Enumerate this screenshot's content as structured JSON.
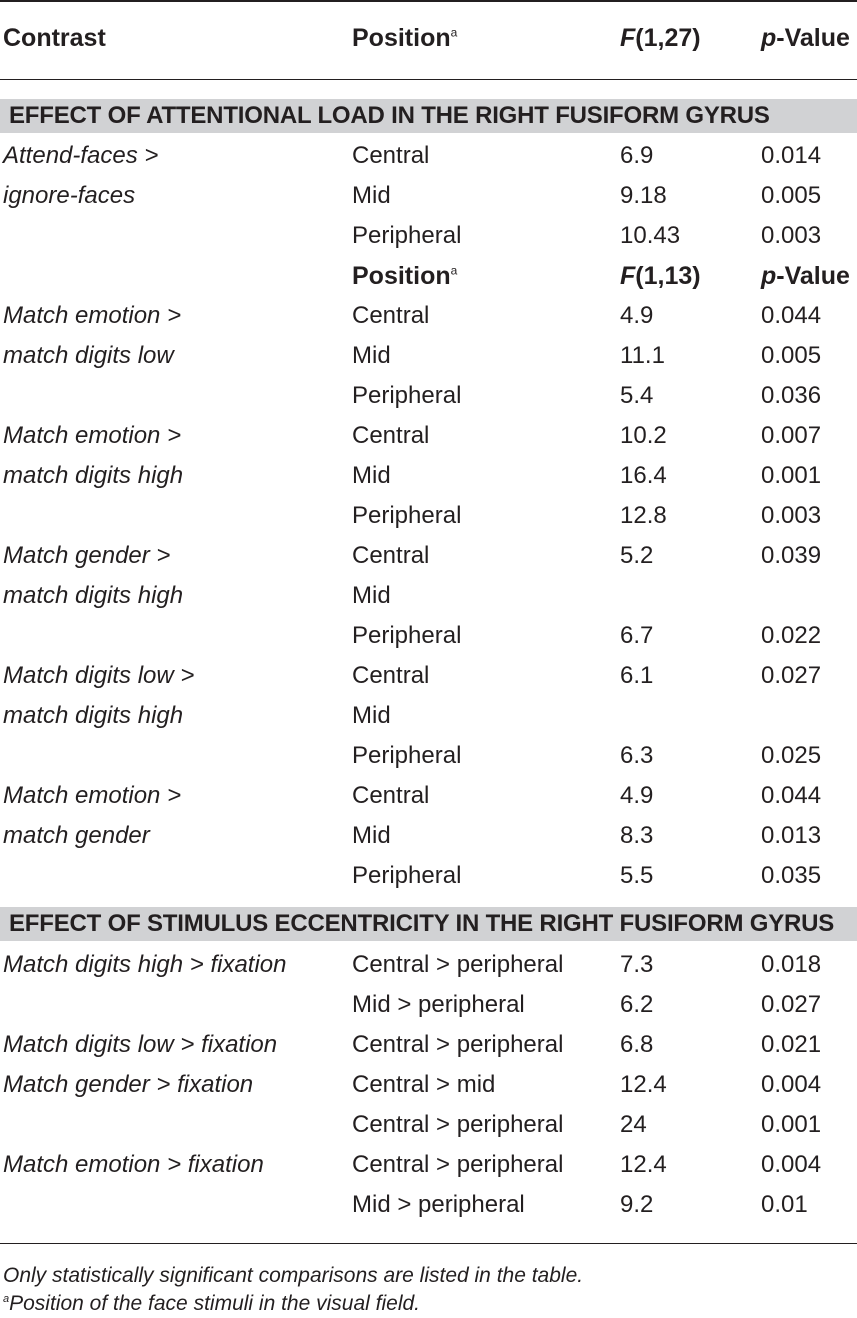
{
  "header": {
    "contrast": "Contrast",
    "position": "Position",
    "position_sup": "a",
    "f_letter": "F",
    "f_df": "(1,27)",
    "p_letter": "p",
    "p_rest": "-Value"
  },
  "section1": {
    "title": "EFFECT OF ATTENTIONAL LOAD IN THE RIGHT FUSIFORM GYRUS",
    "rows": [
      {
        "contrast": "Attend-faces >",
        "position": "Central",
        "f": "6.9",
        "p": "0.014"
      },
      {
        "contrast": "ignore-faces",
        "position": "Mid",
        "f": "9.18",
        "p": "0.005"
      },
      {
        "contrast": "",
        "position": "Peripheral",
        "f": "10.43",
        "p": "0.003"
      }
    ],
    "subheader": {
      "position": "Position",
      "position_sup": "a",
      "f_letter": "F",
      "f_df": "(1,13)",
      "p_letter": "p",
      "p_rest": "-Value"
    },
    "rows2": [
      {
        "contrast": "Match emotion >",
        "position": "Central",
        "f": "4.9",
        "p": "0.044"
      },
      {
        "contrast": "match digits low",
        "position": "Mid",
        "f": "11.1",
        "p": "0.005"
      },
      {
        "contrast": "",
        "position": "Peripheral",
        "f": "5.4",
        "p": "0.036"
      },
      {
        "contrast": "Match emotion >",
        "position": "Central",
        "f": "10.2",
        "p": "0.007"
      },
      {
        "contrast": "match digits high",
        "position": "Mid",
        "f": "16.4",
        "p": "0.001"
      },
      {
        "contrast": "",
        "position": "Peripheral",
        "f": "12.8",
        "p": "0.003"
      },
      {
        "contrast": "Match gender >",
        "position": "Central",
        "f": "5.2",
        "p": "0.039"
      },
      {
        "contrast": "match digits high",
        "position": "Mid",
        "f": "",
        "p": ""
      },
      {
        "contrast": "",
        "position": "Peripheral",
        "f": "6.7",
        "p": "0.022"
      },
      {
        "contrast": "Match digits low >",
        "position": "Central",
        "f": "6.1",
        "p": "0.027"
      },
      {
        "contrast": "match digits high",
        "position": "Mid",
        "f": "",
        "p": ""
      },
      {
        "contrast": "",
        "position": "Peripheral",
        "f": "6.3",
        "p": "0.025"
      },
      {
        "contrast": "Match emotion >",
        "position": "Central",
        "f": "4.9",
        "p": "0.044"
      },
      {
        "contrast": "match gender",
        "position": "Mid",
        "f": "8.3",
        "p": "0.013"
      },
      {
        "contrast": "",
        "position": "Peripheral",
        "f": "5.5",
        "p": "0.035"
      }
    ]
  },
  "section2": {
    "title": "EFFECT OF STIMULUS ECCENTRICITY IN THE RIGHT FUSIFORM GYRUS",
    "rows": [
      {
        "contrast": "Match digits high > fixation",
        "position": "Central > peripheral",
        "f": "7.3",
        "p": "0.018"
      },
      {
        "contrast": "",
        "position": "Mid > peripheral",
        "f": "6.2",
        "p": "0.027"
      },
      {
        "contrast": "Match digits low > fixation",
        "position": "Central > peripheral",
        "f": "6.8",
        "p": "0.021"
      },
      {
        "contrast": "Match gender > fixation",
        "position": "Central > mid",
        "f": "12.4",
        "p": "0.004"
      },
      {
        "contrast": "",
        "position": "Central > peripheral",
        "f": "24",
        "p": "0.001"
      },
      {
        "contrast": "Match emotion > fixation",
        "position": "Central > peripheral",
        "f": "12.4",
        "p": "0.004"
      },
      {
        "contrast": "",
        "position": "Mid > peripheral",
        "f": "9.2",
        "p": "0.01"
      }
    ]
  },
  "footnotes": {
    "note1": "Only statistically significant comparisons are listed in the table.",
    "note2_marker": "a",
    "note2": "Position of the face stimuli in the visual field."
  }
}
